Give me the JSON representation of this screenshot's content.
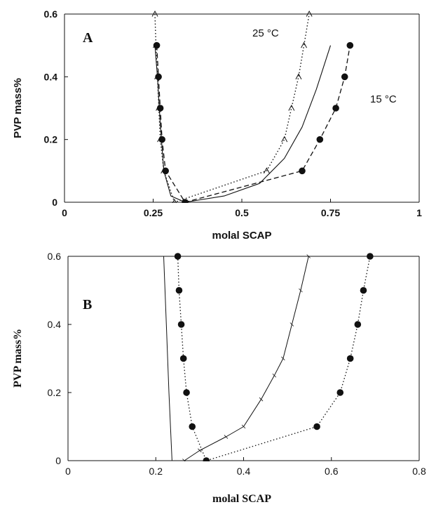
{
  "chart_data": [
    {
      "type": "line",
      "panel_label": "A",
      "xlabel": "molal SCAP",
      "ylabel": "PVP mass%",
      "xlim": [
        0,
        1
      ],
      "ylim": [
        0,
        0.6
      ],
      "xticks": [
        "0",
        "0.25",
        "0.5",
        "0.75",
        "1"
      ],
      "yticks": [
        "0",
        "0.2",
        "0.4",
        "0.6"
      ],
      "grid": false,
      "annotations": [
        "25 °C",
        "15 °C"
      ],
      "series": [
        {
          "style": "dashed-circles",
          "points": [
            [
              0.26,
              0.5
            ],
            [
              0.265,
              0.4
            ],
            [
              0.27,
              0.3
            ],
            [
              0.275,
              0.2
            ],
            [
              0.285,
              0.1
            ],
            [
              0.34,
              0
            ],
            [
              0.67,
              0.1
            ],
            [
              0.72,
              0.2
            ],
            [
              0.765,
              0.3
            ],
            [
              0.79,
              0.4
            ],
            [
              0.805,
              0.5
            ]
          ]
        },
        {
          "style": "dotted-triangles",
          "points": [
            [
              0.255,
              0.6
            ],
            [
              0.258,
              0.5
            ],
            [
              0.262,
              0.4
            ],
            [
              0.266,
              0.3
            ],
            [
              0.27,
              0.2
            ],
            [
              0.28,
              0.1
            ],
            [
              0.31,
              0
            ],
            [
              0.57,
              0.1
            ],
            [
              0.62,
              0.2
            ],
            [
              0.64,
              0.3
            ],
            [
              0.66,
              0.4
            ],
            [
              0.675,
              0.5
            ],
            [
              0.69,
              0.6
            ]
          ]
        },
        {
          "style": "solid",
          "points": [
            [
              0.255,
              0.5
            ],
            [
              0.262,
              0.4
            ],
            [
              0.27,
              0.25
            ],
            [
              0.28,
              0.1
            ],
            [
              0.3,
              0.02
            ],
            [
              0.34,
              0
            ],
            [
              0.45,
              0.02
            ],
            [
              0.55,
              0.06
            ],
            [
              0.62,
              0.14
            ],
            [
              0.67,
              0.24
            ],
            [
              0.71,
              0.36
            ],
            [
              0.75,
              0.5
            ]
          ]
        }
      ]
    },
    {
      "type": "line",
      "panel_label": "B",
      "xlabel": "molal SCAP",
      "ylabel": "PVP mass%",
      "xlim": [
        0,
        0.8
      ],
      "ylim": [
        0,
        0.6
      ],
      "xticks": [
        "0",
        "0.2",
        "0.4",
        "0.6",
        "0.8"
      ],
      "yticks": [
        "0",
        "0.2",
        "0.4",
        "0.6"
      ],
      "grid": false,
      "series": [
        {
          "style": "dashdot-circles",
          "points": [
            [
              0.25,
              0.6
            ],
            [
              0.253,
              0.5
            ],
            [
              0.258,
              0.4
            ],
            [
              0.263,
              0.3
            ],
            [
              0.27,
              0.2
            ],
            [
              0.283,
              0.1
            ],
            [
              0.315,
              0
            ],
            [
              0.567,
              0.1
            ],
            [
              0.62,
              0.2
            ],
            [
              0.643,
              0.3
            ],
            [
              0.66,
              0.4
            ],
            [
              0.673,
              0.5
            ],
            [
              0.688,
              0.6
            ]
          ]
        },
        {
          "style": "solid-thin",
          "points": [
            [
              0.218,
              0.6
            ],
            [
              0.224,
              0.4
            ],
            [
              0.23,
              0.2
            ],
            [
              0.237,
              0
            ]
          ]
        },
        {
          "style": "solid-markers",
          "points": [
            [
              0.265,
              0
            ],
            [
              0.3,
              0.03
            ],
            [
              0.36,
              0.07
            ],
            [
              0.4,
              0.1
            ],
            [
              0.44,
              0.18
            ],
            [
              0.47,
              0.25
            ],
            [
              0.49,
              0.3
            ],
            [
              0.51,
              0.4
            ],
            [
              0.53,
              0.5
            ],
            [
              0.548,
              0.6
            ]
          ]
        }
      ]
    }
  ]
}
